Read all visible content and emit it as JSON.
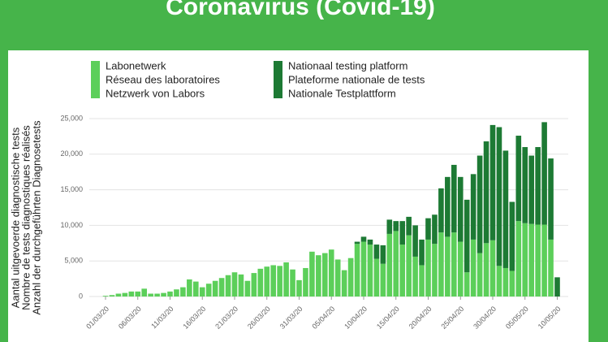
{
  "chart_data": {
    "type": "stacked_bar",
    "title": "Coronavirus (Covid-19)",
    "y_label": [
      "Aantal uitgevoerde diagnostische tests",
      "Nombre de tests diagnostiques réalisés",
      "Anzahl der durchgeführten Diagnosetests"
    ],
    "categories": [
      "01/03/20",
      null,
      null,
      null,
      null,
      "06/03/20",
      null,
      null,
      null,
      null,
      "11/03/20",
      null,
      null,
      null,
      null,
      "16/03/20",
      null,
      null,
      null,
      null,
      "21/03/20",
      null,
      null,
      null,
      null,
      "26/03/20",
      null,
      null,
      null,
      null,
      "31/03/20",
      null,
      null,
      null,
      null,
      "05/04/20",
      null,
      null,
      null,
      null,
      "10/04/20",
      null,
      null,
      null,
      null,
      "15/04/20",
      null,
      null,
      null,
      null,
      "20/04/20",
      null,
      null,
      null,
      null,
      "25/04/20",
      null,
      null,
      null,
      null,
      "30/04/20",
      null,
      null,
      null,
      null,
      "05/05/20",
      null,
      null,
      null,
      null,
      "10/05/20"
    ],
    "series": [
      {
        "name": [
          "Labonetwerk",
          "Réseau des laboratoires",
          "Netzwerk von Labors"
        ],
        "color": "#5ccf5a",
        "values": [
          100,
          200,
          400,
          500,
          700,
          700,
          1100,
          400,
          400,
          500,
          700,
          1000,
          1300,
          2400,
          2100,
          1300,
          1800,
          2200,
          2600,
          3000,
          3400,
          3100,
          2200,
          3300,
          3900,
          4200,
          4400,
          4300,
          4800,
          3800,
          2300,
          4000,
          6300,
          5800,
          6100,
          6600,
          5200,
          3700,
          5400,
          7400,
          7700,
          7300,
          5300,
          4600,
          8800,
          9200,
          7300,
          8600,
          5600,
          4400,
          8000,
          7400,
          9000,
          8400,
          9000,
          7700,
          3400,
          8000,
          6100,
          7500,
          7900,
          4300,
          4000,
          3600,
          10600,
          10300,
          10200,
          10100,
          10100,
          8000,
          0
        ]
      },
      {
        "name": [
          "Nationaal testing platform",
          "Plateforme nationale de tests",
          "Nationale Testplattform"
        ],
        "color": "#1d7a34",
        "values": [
          0,
          0,
          0,
          0,
          0,
          0,
          0,
          0,
          0,
          0,
          0,
          0,
          0,
          0,
          0,
          0,
          0,
          0,
          0,
          0,
          0,
          0,
          0,
          0,
          0,
          0,
          0,
          0,
          0,
          0,
          0,
          0,
          0,
          0,
          0,
          0,
          0,
          0,
          0,
          300,
          700,
          700,
          2000,
          2600,
          2000,
          1400,
          3300,
          2600,
          4400,
          3600,
          3000,
          4100,
          6200,
          8400,
          9500,
          9100,
          10200,
          9200,
          13700,
          14300,
          16200,
          19500,
          16500,
          9700,
          12000,
          10700,
          9600,
          10900,
          14400,
          11400,
          2700
        ]
      }
    ],
    "ylim": [
      0,
      25000
    ],
    "yticks": [
      0,
      {
        "value": 5000,
        "label": "5,000"
      },
      {
        "value": 10000,
        "label": "10,000"
      },
      {
        "value": 15000,
        "label": "15,000"
      },
      {
        "value": 20000,
        "label": "20,000"
      },
      {
        "value": 25000,
        "label": "25,000"
      }
    ],
    "grid": true
  }
}
